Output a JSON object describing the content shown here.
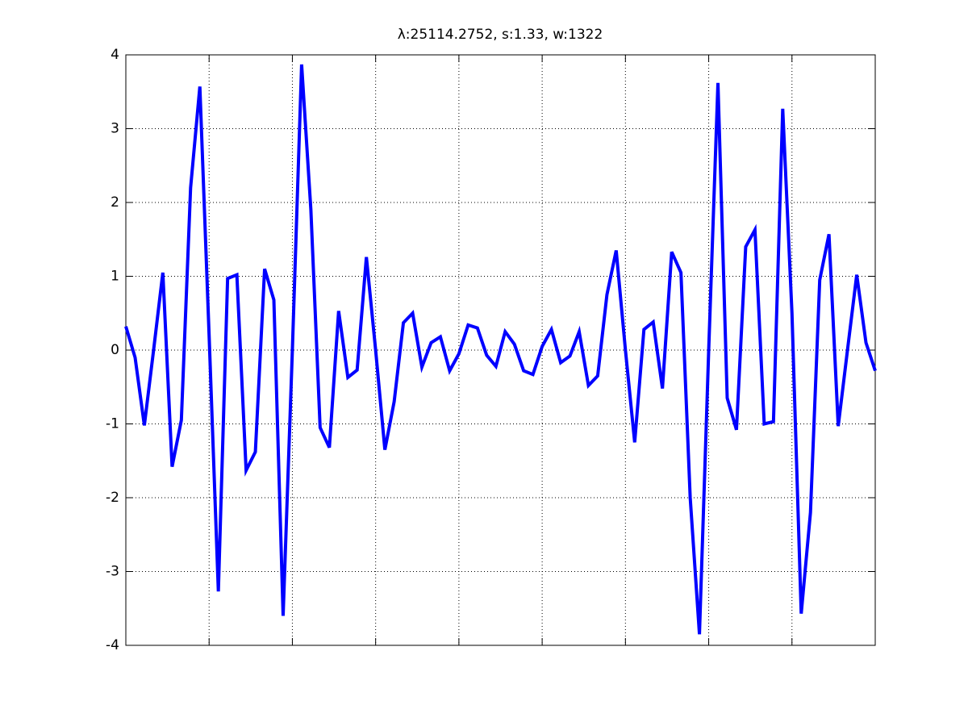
{
  "chart_data": {
    "type": "line",
    "title": "λ:25114.2752, s:1.33, w:1322",
    "x": [
      1,
      2,
      3,
      4,
      5,
      6,
      7,
      8,
      9,
      10,
      11,
      12,
      13,
      14,
      15,
      16,
      17,
      18,
      19,
      20,
      21,
      22,
      23,
      24,
      25,
      26,
      27,
      28,
      29,
      30,
      31,
      32,
      33,
      34,
      35,
      36,
      37,
      38,
      39,
      40,
      41,
      42,
      43,
      44,
      45,
      46,
      47,
      48,
      49,
      50,
      51,
      52,
      53,
      54,
      55,
      56,
      57,
      58,
      59,
      60,
      61,
      62,
      63,
      64,
      65,
      66,
      67,
      68,
      69,
      70,
      71,
      72,
      73,
      74,
      75,
      76,
      77,
      78,
      79,
      80,
      81,
      82
    ],
    "series": [
      {
        "color": "#0000ff",
        "values": [
          0.32,
          -0.1,
          -1.02,
          0.0,
          1.05,
          -1.58,
          -0.95,
          2.2,
          3.57,
          0.2,
          -3.27,
          0.97,
          1.02,
          -1.63,
          -1.38,
          1.1,
          0.68,
          -3.6,
          0.0,
          3.87,
          1.9,
          -1.05,
          -1.32,
          0.53,
          -0.37,
          -0.27,
          1.26,
          0.0,
          -1.35,
          -0.7,
          0.37,
          0.5,
          -0.23,
          0.1,
          0.18,
          -0.28,
          -0.05,
          0.34,
          0.3,
          -0.07,
          -0.22,
          0.25,
          0.08,
          -0.28,
          -0.33,
          0.05,
          0.28,
          -0.17,
          -0.08,
          0.25,
          -0.48,
          -0.35,
          0.75,
          1.35,
          0.0,
          -1.25,
          0.28,
          0.38,
          -0.52,
          1.33,
          1.05,
          -2.0,
          -3.85,
          0.0,
          3.62,
          -0.65,
          -1.08,
          1.4,
          1.63,
          -1.0,
          -0.97,
          3.27,
          0.5,
          -3.57,
          -2.2,
          0.95,
          1.57,
          -1.03,
          0.0,
          1.02,
          0.1,
          -0.28
        ]
      }
    ],
    "xlim": [
      1,
      82
    ],
    "xticks": [
      10,
      19,
      28,
      37,
      46,
      55,
      64,
      73
    ],
    "xticklabels": false,
    "ylim": [
      -4,
      4
    ],
    "yticks": [
      -4,
      -3,
      -2,
      -1,
      0,
      1,
      2,
      3,
      4
    ],
    "grid": true
  }
}
